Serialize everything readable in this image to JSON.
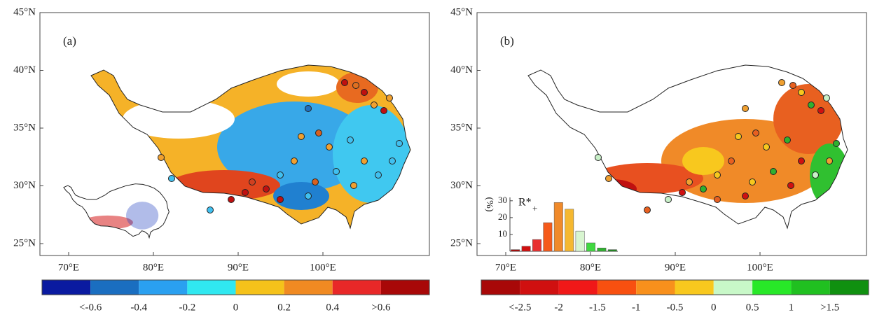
{
  "panels": [
    {
      "label": "(a)",
      "lat_ticks": [
        {
          "value": 25,
          "label": "25°N"
        },
        {
          "value": 30,
          "label": "30°N"
        },
        {
          "value": 35,
          "label": "35°N"
        },
        {
          "value": 40,
          "label": "40°N"
        },
        {
          "value": 45,
          "label": "45°N"
        }
      ],
      "lon_ticks": [
        {
          "value": 70,
          "label": "70°E"
        },
        {
          "value": 80,
          "label": "80°E"
        },
        {
          "value": 90,
          "label": "90°E"
        },
        {
          "value": 100,
          "label": "100°E"
        }
      ],
      "colorbar": {
        "colors": [
          "#0a1aa0",
          "#1a6ec0",
          "#2aa0f0",
          "#30e8f0",
          "#f5c21a",
          "#f08a22",
          "#e82828",
          "#a80808"
        ],
        "labels": [
          "<-0.6",
          "-0.4",
          "-0.2",
          "0",
          "0.2",
          "0.4",
          ">0.6"
        ]
      }
    },
    {
      "label": "(b)",
      "lat_ticks": [
        {
          "value": 25,
          "label": "25°N"
        },
        {
          "value": 30,
          "label": "30°N"
        },
        {
          "value": 35,
          "label": "35°N"
        },
        {
          "value": 40,
          "label": "40°N"
        },
        {
          "value": 45,
          "label": "45°N"
        }
      ],
      "lon_ticks": [
        {
          "value": 70,
          "label": "70°E"
        },
        {
          "value": 80,
          "label": "80°E"
        },
        {
          "value": 90,
          "label": "90°E"
        },
        {
          "value": 100,
          "label": "100°E"
        }
      ],
      "colorbar": {
        "colors": [
          "#a80808",
          "#d01010",
          "#f01818",
          "#f85010",
          "#f8901c",
          "#f8c81e",
          "#c8f8c8",
          "#28e828",
          "#20c020",
          "#109010"
        ],
        "labels": [
          "<-2.5",
          "-2",
          "-1.5",
          "-1",
          "-0.5",
          "0",
          "0.5",
          "1",
          ">1.5"
        ]
      },
      "inset_histogram": {
        "ylabel": "(%)",
        "label": "R*",
        "label_sub": "+",
        "values": [
          1,
          3,
          7,
          17,
          29,
          25,
          12,
          5,
          2,
          1
        ],
        "colors": [
          "#a80808",
          "#d01010",
          "#e83030",
          "#f55a1a",
          "#f08a2a",
          "#f5b830",
          "#d8f5d0",
          "#40d840",
          "#30b030",
          "#208820"
        ],
        "ylim": [
          0,
          32
        ],
        "yticks": [
          10,
          20,
          30
        ]
      }
    }
  ]
}
